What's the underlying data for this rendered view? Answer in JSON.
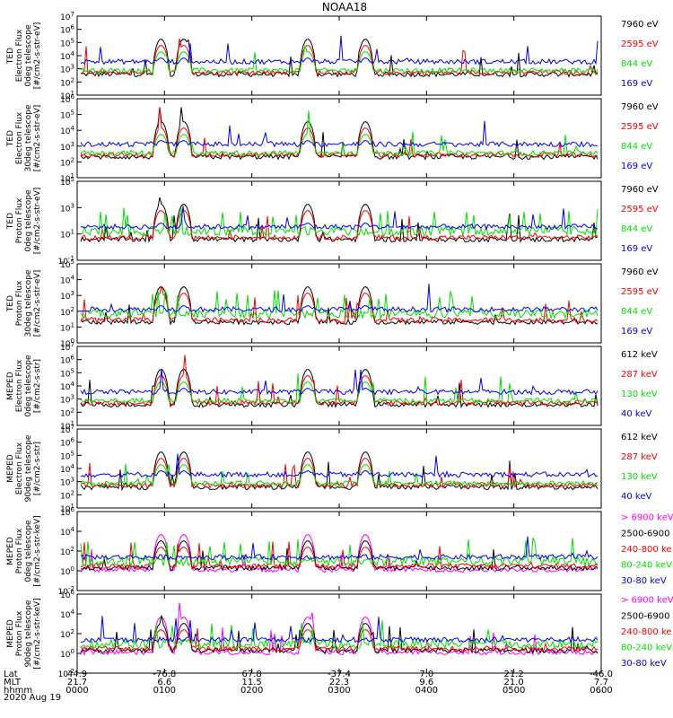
{
  "title": "NOAA18",
  "date_label": "2020 Aug 19",
  "footer": {
    "row_labels": [
      "Lat",
      "MLT",
      "hhmm"
    ],
    "columns": [
      {
        "lat": "44.9",
        "mlt": "21.7",
        "hhmm": "0000"
      },
      {
        "lat": "-76.8",
        "mlt": "6.6",
        "hhmm": "0100"
      },
      {
        "lat": "67.8",
        "mlt": "11.5",
        "hhmm": "0200"
      },
      {
        "lat": "-37.4",
        "mlt": "22.3",
        "hhmm": "0300"
      },
      {
        "lat": "7.0",
        "mlt": "9.6",
        "hhmm": "0400"
      },
      {
        "lat": "21.2",
        "mlt": "21.0",
        "hhmm": "0500"
      },
      {
        "lat": "-46.0",
        "mlt": "7.7",
        "hhmm": "0600"
      }
    ]
  },
  "colors": {
    "blue": "#0000ff",
    "red": "#ff0000",
    "green": "#00e000",
    "black": "#000000",
    "magenta": "#ff00ff"
  },
  "chart_data": [
    {
      "type": "scatter",
      "panel": "TED electron 0deg",
      "ylabel": [
        "TED",
        "Electron Flux",
        "0deg telescope",
        "[#/cm2-s-str-eV]"
      ],
      "yscale": "log",
      "ytick_exponents": [
        1,
        2,
        3,
        4,
        5,
        6,
        7
      ],
      "xlim_hours": [
        0,
        6
      ],
      "legend": [
        {
          "label": "7960 eV",
          "color": "black"
        },
        {
          "label": "2595 eV",
          "color": "red"
        },
        {
          "label": "844 eV",
          "color": "green"
        },
        {
          "label": "169 eV",
          "color": "blue"
        }
      ]
    },
    {
      "type": "scatter",
      "panel": "TED electron 30deg",
      "ylabel": [
        "TED",
        "Electron Flux",
        "30deg telescope",
        "[#/cm2-s-str-eV]"
      ],
      "yscale": "log",
      "ytick_exponents": [
        1,
        2,
        3,
        4,
        5,
        6
      ],
      "xlim_hours": [
        0,
        6
      ],
      "legend": [
        {
          "label": "7960 eV",
          "color": "black"
        },
        {
          "label": "2595 eV",
          "color": "red"
        },
        {
          "label": "844 eV",
          "color": "green"
        },
        {
          "label": "169 eV",
          "color": "blue"
        }
      ]
    },
    {
      "type": "scatter",
      "panel": "TED proton 0deg",
      "ylabel": [
        "TED",
        "Proton Flux",
        "0deg telescope",
        "[#/cm2-s-str-eV]"
      ],
      "yscale": "log",
      "ytick_exponents": [
        -1,
        1,
        3,
        5
      ],
      "xlim_hours": [
        0,
        6
      ],
      "legend": [
        {
          "label": "7960 eV",
          "color": "black"
        },
        {
          "label": "2595 eV",
          "color": "red"
        },
        {
          "label": "844 eV",
          "color": "green"
        },
        {
          "label": "169 eV",
          "color": "blue"
        }
      ]
    },
    {
      "type": "scatter",
      "panel": "TED proton 30deg",
      "ylabel": [
        "TED",
        "Proton Flux",
        "30deg telescope",
        "[#/cm2-s-str-eV]"
      ],
      "yscale": "log",
      "ytick_exponents": [
        0,
        1,
        2,
        3,
        4,
        5
      ],
      "xlim_hours": [
        0,
        6
      ],
      "legend": [
        {
          "label": "7960 eV",
          "color": "black"
        },
        {
          "label": "2595 eV",
          "color": "red"
        },
        {
          "label": "844 eV",
          "color": "green"
        },
        {
          "label": "169 eV",
          "color": "blue"
        }
      ]
    },
    {
      "type": "line",
      "panel": "MEPED electron 0deg",
      "ylabel": [
        "MEPED",
        "Electron Flux",
        "0deg telescope",
        "[#/cm2-s-str]"
      ],
      "yscale": "log",
      "ytick_exponents": [
        1,
        2,
        3,
        4,
        5,
        6,
        7
      ],
      "xlim_hours": [
        0,
        6
      ],
      "legend": [
        {
          "label": "612 keV",
          "color": "black"
        },
        {
          "label": "287 keV",
          "color": "red"
        },
        {
          "label": "130 keV",
          "color": "green"
        },
        {
          "label": "40 keV",
          "color": "blue"
        }
      ]
    },
    {
      "type": "line",
      "panel": "MEPED electron 90deg",
      "ylabel": [
        "MEPED",
        "Electron Flux",
        "90deg telescope",
        "[#/cm2-s-str]"
      ],
      "yscale": "log",
      "ytick_exponents": [
        1,
        2,
        3,
        4,
        5,
        6,
        7
      ],
      "xlim_hours": [
        0,
        6
      ],
      "legend": [
        {
          "label": "612 keV",
          "color": "black"
        },
        {
          "label": "287 keV",
          "color": "red"
        },
        {
          "label": "130 keV",
          "color": "green"
        },
        {
          "label": "40 keV",
          "color": "blue"
        }
      ]
    },
    {
      "type": "line",
      "panel": "MEPED proton 0deg",
      "ylabel": [
        "MEPED",
        "Proton Flux",
        "0deg telescope",
        "[#/cm2-s-str-keV]"
      ],
      "yscale": "log",
      "ytick_exponents": [
        -2,
        0,
        2,
        4,
        6
      ],
      "xlim_hours": [
        0,
        6
      ],
      "legend": [
        {
          "label": "> 6900 keV",
          "color": "magenta"
        },
        {
          "label": "2500-6900",
          "color": "black"
        },
        {
          "label": "240-800 ke",
          "color": "red"
        },
        {
          "label": "80-240 keV",
          "color": "green"
        },
        {
          "label": "30-80 keV",
          "color": "blue"
        }
      ]
    },
    {
      "type": "line",
      "panel": "MEPED proton 90deg",
      "ylabel": [
        "MEPED",
        "Proton Flux",
        "90deg telescope",
        "[#/cm2-s-str-keV]"
      ],
      "yscale": "log",
      "ytick_exponents": [
        -2,
        0,
        2,
        4,
        6
      ],
      "xlim_hours": [
        0,
        6
      ],
      "legend": [
        {
          "label": "> 6900 keV",
          "color": "magenta"
        },
        {
          "label": "2500-6900",
          "color": "black"
        },
        {
          "label": "240-800 ke",
          "color": "red"
        },
        {
          "label": "80-240 keV",
          "color": "green"
        },
        {
          "label": "30-80 keV",
          "color": "blue"
        }
      ]
    }
  ]
}
